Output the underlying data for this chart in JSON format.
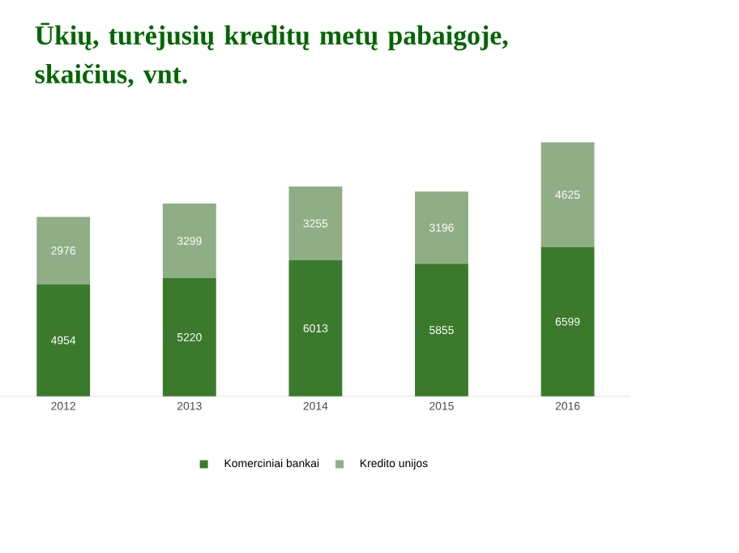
{
  "chart_data": {
    "type": "bar",
    "title": "Ūkių, turėjusių kreditų metų pabaigoje, skaičius, vnt.",
    "categories": [
      "2012",
      "2013",
      "2014",
      "2015",
      "2016"
    ],
    "stacked": true,
    "data_labels": true,
    "legend": "bottom",
    "series": [
      {
        "name": "Komerciniai bankai",
        "color": "#3b7a2c",
        "values": [
          4954,
          5220,
          6013,
          5855,
          6599
        ]
      },
      {
        "name": "Kredito unijos",
        "color": "#8fae86",
        "values": [
          2976,
          3299,
          3255,
          3196,
          4625
        ]
      }
    ]
  }
}
